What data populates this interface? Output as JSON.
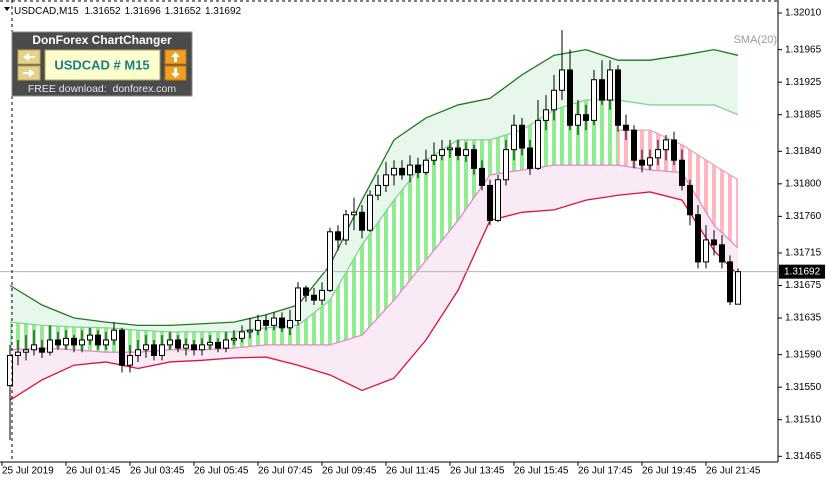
{
  "chart_data": {
    "type": "candlestick",
    "title": "USDCAD,M15",
    "indicator_label": "SMA(20)",
    "up_color": "#ffffff",
    "down_color": "#000000",
    "wick_color": "#000000",
    "candles": [
      [
        1.31552,
        1.31602,
        1.31485,
        1.31589
      ],
      [
        1.31589,
        1.31608,
        1.31577,
        1.31593
      ],
      [
        1.31593,
        1.31614,
        1.31583,
        1.31596
      ],
      [
        1.31596,
        1.3162,
        1.31589,
        1.31602
      ],
      [
        1.31598,
        1.31608,
        1.31586,
        1.31593
      ],
      [
        1.31593,
        1.31626,
        1.31589,
        1.31608
      ],
      [
        1.31608,
        1.31618,
        1.31596,
        1.31602
      ],
      [
        1.31602,
        1.3162,
        1.31596,
        1.3161
      ],
      [
        1.3161,
        1.31614,
        1.31593,
        1.31602
      ],
      [
        1.31602,
        1.3162,
        1.31593,
        1.31608
      ],
      [
        1.31608,
        1.31623,
        1.31602,
        1.31614
      ],
      [
        1.31614,
        1.3162,
        1.31596,
        1.31602
      ],
      [
        1.31602,
        1.31618,
        1.31596,
        1.31608
      ],
      [
        1.31608,
        1.3163,
        1.31602,
        1.3162
      ],
      [
        1.3162,
        1.31623,
        1.31568,
        1.31577
      ],
      [
        1.31577,
        1.31602,
        1.31568,
        1.31589
      ],
      [
        1.31589,
        1.31608,
        1.31581,
        1.31596
      ],
      [
        1.31596,
        1.31614,
        1.31586,
        1.31602
      ],
      [
        1.31602,
        1.31608,
        1.31583,
        1.31589
      ],
      [
        1.31589,
        1.31614,
        1.31583,
        1.31602
      ],
      [
        1.31602,
        1.31618,
        1.31596,
        1.31608
      ],
      [
        1.31608,
        1.31614,
        1.31593,
        1.31598
      ],
      [
        1.31598,
        1.3161,
        1.31589,
        1.31602
      ],
      [
        1.31602,
        1.31608,
        1.31589,
        1.31596
      ],
      [
        1.31596,
        1.3161,
        1.31589,
        1.31602
      ],
      [
        1.31602,
        1.31614,
        1.31596,
        1.31605
      ],
      [
        1.31605,
        1.3161,
        1.31593,
        1.31598
      ],
      [
        1.31598,
        1.31618,
        1.31593,
        1.31608
      ],
      [
        1.31608,
        1.3162,
        1.31602,
        1.3161
      ],
      [
        1.3161,
        1.31626,
        1.31605,
        1.31618
      ],
      [
        1.31618,
        1.31635,
        1.3161,
        1.3162
      ],
      [
        1.3162,
        1.31639,
        1.31614,
        1.31632
      ],
      [
        1.31632,
        1.31639,
        1.3162,
        1.31626
      ],
      [
        1.31626,
        1.31642,
        1.3162,
        1.31635
      ],
      [
        1.31635,
        1.31642,
        1.31618,
        1.31623
      ],
      [
        1.31623,
        1.31645,
        1.31614,
        1.31632
      ],
      [
        1.31632,
        1.31679,
        1.31626,
        1.31672
      ],
      [
        1.31672,
        1.31675,
        1.31655,
        1.31663
      ],
      [
        1.31663,
        1.31672,
        1.31651,
        1.31657
      ],
      [
        1.31657,
        1.31679,
        1.31651,
        1.31669
      ],
      [
        1.31669,
        1.31746,
        1.31667,
        1.31741
      ],
      [
        1.31741,
        1.31749,
        1.31718,
        1.31731
      ],
      [
        1.31731,
        1.31768,
        1.31725,
        1.31762
      ],
      [
        1.31762,
        1.31783,
        1.31743,
        1.31765
      ],
      [
        1.31765,
        1.31774,
        1.31733,
        1.31743
      ],
      [
        1.31743,
        1.31792,
        1.31741,
        1.31786
      ],
      [
        1.31786,
        1.31811,
        1.3178,
        1.31798
      ],
      [
        1.31798,
        1.31827,
        1.3179,
        1.31811
      ],
      [
        1.31811,
        1.31829,
        1.31798,
        1.31819
      ],
      [
        1.31819,
        1.31829,
        1.31805,
        1.31811
      ],
      [
        1.31811,
        1.31835,
        1.31802,
        1.31823
      ],
      [
        1.31823,
        1.31832,
        1.31807,
        1.31814
      ],
      [
        1.31814,
        1.31842,
        1.31811,
        1.31829
      ],
      [
        1.31829,
        1.31851,
        1.31823,
        1.31835
      ],
      [
        1.31835,
        1.31854,
        1.31829,
        1.31842
      ],
      [
        1.31842,
        1.31854,
        1.31832,
        1.31844
      ],
      [
        1.31844,
        1.31854,
        1.31829,
        1.31835
      ],
      [
        1.31835,
        1.31851,
        1.31827,
        1.31842
      ],
      [
        1.31842,
        1.31848,
        1.31811,
        1.31819
      ],
      [
        1.31819,
        1.31829,
        1.31792,
        1.31798
      ],
      [
        1.31798,
        1.31805,
        1.31749,
        1.31755
      ],
      [
        1.31755,
        1.31811,
        1.31753,
        1.31805
      ],
      [
        1.31805,
        1.31854,
        1.31798,
        1.31842
      ],
      [
        1.31842,
        1.31885,
        1.31829,
        1.31872
      ],
      [
        1.31872,
        1.31881,
        1.31835,
        1.31844
      ],
      [
        1.31844,
        1.31854,
        1.31811,
        1.31819
      ],
      [
        1.31819,
        1.31903,
        1.31817,
        1.31878
      ],
      [
        1.31878,
        1.31909,
        1.31866,
        1.31891
      ],
      [
        1.31891,
        1.31934,
        1.31878,
        1.31915
      ],
      [
        1.31915,
        1.31989,
        1.31903,
        1.3194
      ],
      [
        1.3194,
        1.31965,
        1.31866,
        1.31872
      ],
      [
        1.31872,
        1.31903,
        1.3186,
        1.31885
      ],
      [
        1.31885,
        1.31897,
        1.31866,
        1.31878
      ],
      [
        1.31878,
        1.3194,
        1.31872,
        1.31928
      ],
      [
        1.31928,
        1.31952,
        1.31897,
        1.31903
      ],
      [
        1.31903,
        1.31952,
        1.31891,
        1.3194
      ],
      [
        1.3194,
        1.31946,
        1.31864,
        1.31872
      ],
      [
        1.31872,
        1.31885,
        1.31854,
        1.31866
      ],
      [
        1.31866,
        1.31872,
        1.31819,
        1.31829
      ],
      [
        1.31829,
        1.31842,
        1.31814,
        1.31823
      ],
      [
        1.31823,
        1.31842,
        1.31817,
        1.31832
      ],
      [
        1.31832,
        1.31854,
        1.31823,
        1.31842
      ],
      [
        1.31842,
        1.3186,
        1.31829,
        1.31854
      ],
      [
        1.31854,
        1.31864,
        1.31823,
        1.31829
      ],
      [
        1.31829,
        1.31842,
        1.31792,
        1.31798
      ],
      [
        1.31798,
        1.31805,
        1.31749,
        1.31762
      ],
      [
        1.31762,
        1.31774,
        1.31696,
        1.31704
      ],
      [
        1.31704,
        1.31749,
        1.31696,
        1.31731
      ],
      [
        1.31731,
        1.31743,
        1.31712,
        1.31725
      ],
      [
        1.31725,
        1.31737,
        1.31696,
        1.31704
      ],
      [
        1.31704,
        1.31712,
        1.31651,
        1.31655
      ],
      [
        1.31652,
        1.31696,
        1.31652,
        1.31692
      ]
    ],
    "bands": {
      "x": [
        0,
        4,
        8,
        12,
        16,
        20,
        24,
        28,
        32,
        36,
        40,
        44,
        48,
        52,
        56,
        60,
        64,
        68,
        72,
        76,
        80,
        84,
        88,
        91
      ],
      "stripe_up_color": "#90ee90",
      "stripe_down_color": "#ffb6c1",
      "series": [
        {
          "color": "#1f7a1f",
          "values": [
            1.31675,
            1.31651,
            1.31635,
            1.3163,
            1.31626,
            1.31626,
            1.31628,
            1.3163,
            1.31639,
            1.31651,
            1.317,
            1.3178,
            1.31854,
            1.31881,
            1.31897,
            1.31905,
            1.31934,
            1.31958,
            1.31965,
            1.31952,
            1.31952,
            1.31958,
            1.31965,
            1.31958
          ]
        },
        {
          "color": "#7fd58f",
          "values": [
            1.3163,
            1.31626,
            1.31624,
            1.31623,
            1.3162,
            1.31618,
            1.31618,
            1.31618,
            1.31623,
            1.31626,
            1.31657,
            1.31725,
            1.3178,
            1.31829,
            1.31854,
            1.31854,
            1.31866,
            1.31891,
            1.31903,
            1.31903,
            1.31897,
            1.31897,
            1.31897,
            1.31885
          ]
        },
        {
          "color": "#e58ac8",
          "values": [
            1.31596,
            1.31598,
            1.31596,
            1.31593,
            1.31593,
            1.31596,
            1.31596,
            1.31598,
            1.31602,
            1.31602,
            1.31602,
            1.31614,
            1.31657,
            1.31706,
            1.31755,
            1.31811,
            1.31817,
            1.31823,
            1.31823,
            1.31823,
            1.31817,
            1.31814,
            1.31749,
            1.31721
          ]
        },
        {
          "color": "#dc143c",
          "values": [
            1.31534,
            1.31559,
            1.31577,
            1.31581,
            1.31573,
            1.31581,
            1.31583,
            1.31586,
            1.31587,
            1.31577,
            1.31565,
            1.31546,
            1.31561,
            1.31608,
            1.31669,
            1.31755,
            1.31765,
            1.31768,
            1.3178,
            1.31786,
            1.3179,
            1.3178,
            1.31718,
            1.31688
          ]
        },
        {
          "color": "#f2a0b4",
          "values": [
            null,
            null,
            null,
            null,
            null,
            null,
            null,
            null,
            null,
            null,
            null,
            null,
            null,
            null,
            null,
            null,
            null,
            null,
            null,
            1.31866,
            1.31866,
            1.31848,
            1.31823,
            1.31805
          ]
        }
      ]
    },
    "xlim": [
      -1.25,
      95.75
    ],
    "xticks": [
      {
        "value": -1,
        "label": "25 Jul 2019"
      },
      {
        "value": 7,
        "label": "26 Jul 01:45"
      },
      {
        "value": 15,
        "label": "26 Jul 03:45"
      },
      {
        "value": 23,
        "label": "26 Jul 05:45"
      },
      {
        "value": 31,
        "label": "26 Jul 07:45"
      },
      {
        "value": 39,
        "label": "26 Jul 09:45"
      },
      {
        "value": 47,
        "label": "26 Jul 11:45"
      },
      {
        "value": 55,
        "label": "26 Jul 13:45"
      },
      {
        "value": 63,
        "label": "26 Jul 15:45"
      },
      {
        "value": 71,
        "label": "26 Jul 17:45"
      },
      {
        "value": 79,
        "label": "26 Jul 19:45"
      },
      {
        "value": 87,
        "label": "26 Jul 21:45"
      }
    ],
    "ylim": [
      1.31458,
      1.32026
    ],
    "yticks": [
      {
        "value": 1.3201,
        "label": "1.32010"
      },
      1.31965,
      1.31925,
      1.31885,
      {
        "value": 1.3184,
        "label": "1.31840"
      },
      {
        "value": 1.318,
        "label": "1.31800"
      },
      {
        "value": 1.3176,
        "label": "1.31760"
      },
      1.31715,
      1.31675,
      1.31635,
      {
        "value": 1.3159,
        "label": "1.31590"
      },
      {
        "value": 1.3155,
        "label": "1.31550"
      },
      {
        "value": 1.3151,
        "label": "1.31510"
      },
      1.31465
    ]
  },
  "widget": {
    "title": "DonForex ChartChanger",
    "symbol": "USDCAD # M15",
    "footer": "FREE download:  donforex.com"
  }
}
